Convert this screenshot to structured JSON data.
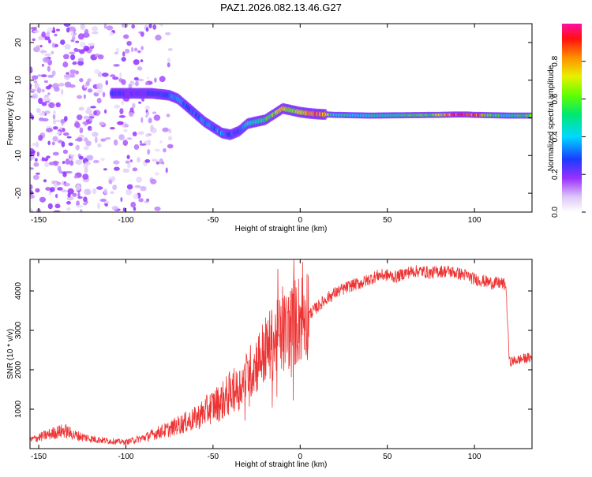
{
  "title": "PAZ1.2026.082.13.46.G27",
  "chart_data": [
    {
      "type": "heatmap",
      "title": "PAZ1.2026.082.13.46.G27",
      "xlabel": "Height of straight line (km)",
      "ylabel": "Frequency (Hz)",
      "xlim": [
        -155,
        133
      ],
      "ylim": [
        -25,
        25
      ],
      "xticks": [
        -150,
        -100,
        -50,
        0,
        50,
        100
      ],
      "yticks": [
        -20,
        -10,
        0,
        10,
        20
      ],
      "colorbar": {
        "label": "Normalized spectral amplitude",
        "range": [
          0,
          1
        ],
        "ticks": [
          0.0,
          0.2,
          0.4,
          0.6,
          0.8
        ]
      },
      "ridge": {
        "description": "dominant frequency vs height",
        "x": [
          -105,
          -95,
          -85,
          -75,
          -70,
          -65,
          -60,
          -55,
          -50,
          -45,
          -40,
          -35,
          -30,
          -25,
          -20,
          -15,
          -10,
          -5,
          0,
          5,
          10,
          20,
          40,
          60,
          80,
          90,
          95,
          100,
          110,
          120,
          133
        ],
        "y": [
          6.5,
          6.5,
          6.5,
          6.0,
          5.0,
          3.0,
          1.0,
          -1.0,
          -2.5,
          -4.0,
          -4.5,
          -3.5,
          -1.5,
          -1.0,
          -0.5,
          1.0,
          2.5,
          2.0,
          1.5,
          1.2,
          1.0,
          0.8,
          0.6,
          0.7,
          0.8,
          0.9,
          0.9,
          0.8,
          0.7,
          0.6,
          0.6
        ],
        "amplitude": [
          0.25,
          0.2,
          0.25,
          0.3,
          0.35,
          0.3,
          0.3,
          0.35,
          0.3,
          0.35,
          0.3,
          0.25,
          0.45,
          0.5,
          0.55,
          0.6,
          0.7,
          0.55,
          0.75,
          0.8,
          0.9,
          0.45,
          0.45,
          0.5,
          0.65,
          0.95,
          0.85,
          0.9,
          0.55,
          0.45,
          0.6
        ]
      }
    },
    {
      "type": "line",
      "xlabel": "Height of straight line (km)",
      "ylabel": "SNR (10 * v/v)",
      "xlim": [
        -155,
        133
      ],
      "ylim": [
        0,
        4800
      ],
      "xticks": [
        -150,
        -100,
        -50,
        0,
        50,
        100
      ],
      "yticks": [
        1000,
        2000,
        3000,
        4000
      ],
      "color": "#ee3333",
      "series": [
        {
          "name": "SNR",
          "x": [
            -155,
            -150,
            -140,
            -135,
            -130,
            -120,
            -110,
            -100,
            -95,
            -90,
            -85,
            -80,
            -75,
            -70,
            -65,
            -60,
            -55,
            -50,
            -45,
            -40,
            -35,
            -30,
            -25,
            -20,
            -15,
            -10,
            -5,
            0,
            5,
            10,
            15,
            20,
            25,
            30,
            35,
            40,
            45,
            50,
            55,
            60,
            65,
            70,
            75,
            80,
            85,
            90,
            95,
            100,
            105,
            110,
            115,
            118,
            119,
            120,
            125,
            130,
            133
          ],
          "y": [
            200,
            260,
            380,
            420,
            320,
            230,
            180,
            150,
            200,
            250,
            320,
            400,
            450,
            550,
            620,
            700,
            850,
            1000,
            1100,
            1300,
            1500,
            1800,
            2100,
            2400,
            2600,
            2800,
            3000,
            3200,
            3400,
            3600,
            3800,
            3950,
            4050,
            4150,
            4200,
            4300,
            4400,
            4400,
            4350,
            4450,
            4500,
            4500,
            4450,
            4500,
            4500,
            4450,
            4400,
            4300,
            4250,
            4200,
            4200,
            4150,
            3200,
            2200,
            2250,
            2300,
            2300
          ]
        }
      ]
    }
  ]
}
